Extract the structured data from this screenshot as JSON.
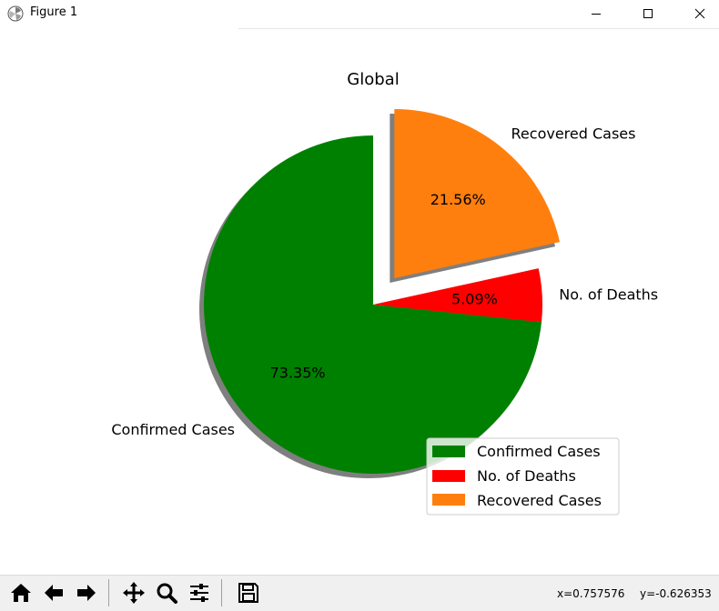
{
  "window": {
    "title": "Figure 1",
    "icons": [
      "matplotlib-icon",
      "minimize-icon",
      "maximize-icon",
      "close-icon"
    ]
  },
  "chart_data": {
    "type": "pie",
    "title": "Global",
    "labels": [
      "Confirmed Cases",
      "No. of Deaths",
      "Recovered Cases"
    ],
    "values": [
      73.35,
      5.09,
      21.56
    ],
    "pct_labels": [
      "73.35%",
      "5.09%",
      "21.56%"
    ],
    "explode": [
      0,
      0,
      0.2
    ],
    "colors": [
      "#008000",
      "#ff0000",
      "#ff7f0e"
    ],
    "start_angle_deg": 90,
    "direction": "counterclockwise",
    "shadow": true,
    "legend": {
      "entries": [
        "Confirmed Cases",
        "No. of Deaths",
        "Recovered Cases"
      ],
      "placement": "lower-right"
    }
  },
  "toolbar": {
    "buttons": [
      "home-icon",
      "back-icon",
      "forward-icon",
      "pan-icon",
      "zoom-icon",
      "subplots-icon",
      "save-icon"
    ],
    "x_readout": "x=0.757576",
    "y_readout": "y=-0.626353"
  }
}
